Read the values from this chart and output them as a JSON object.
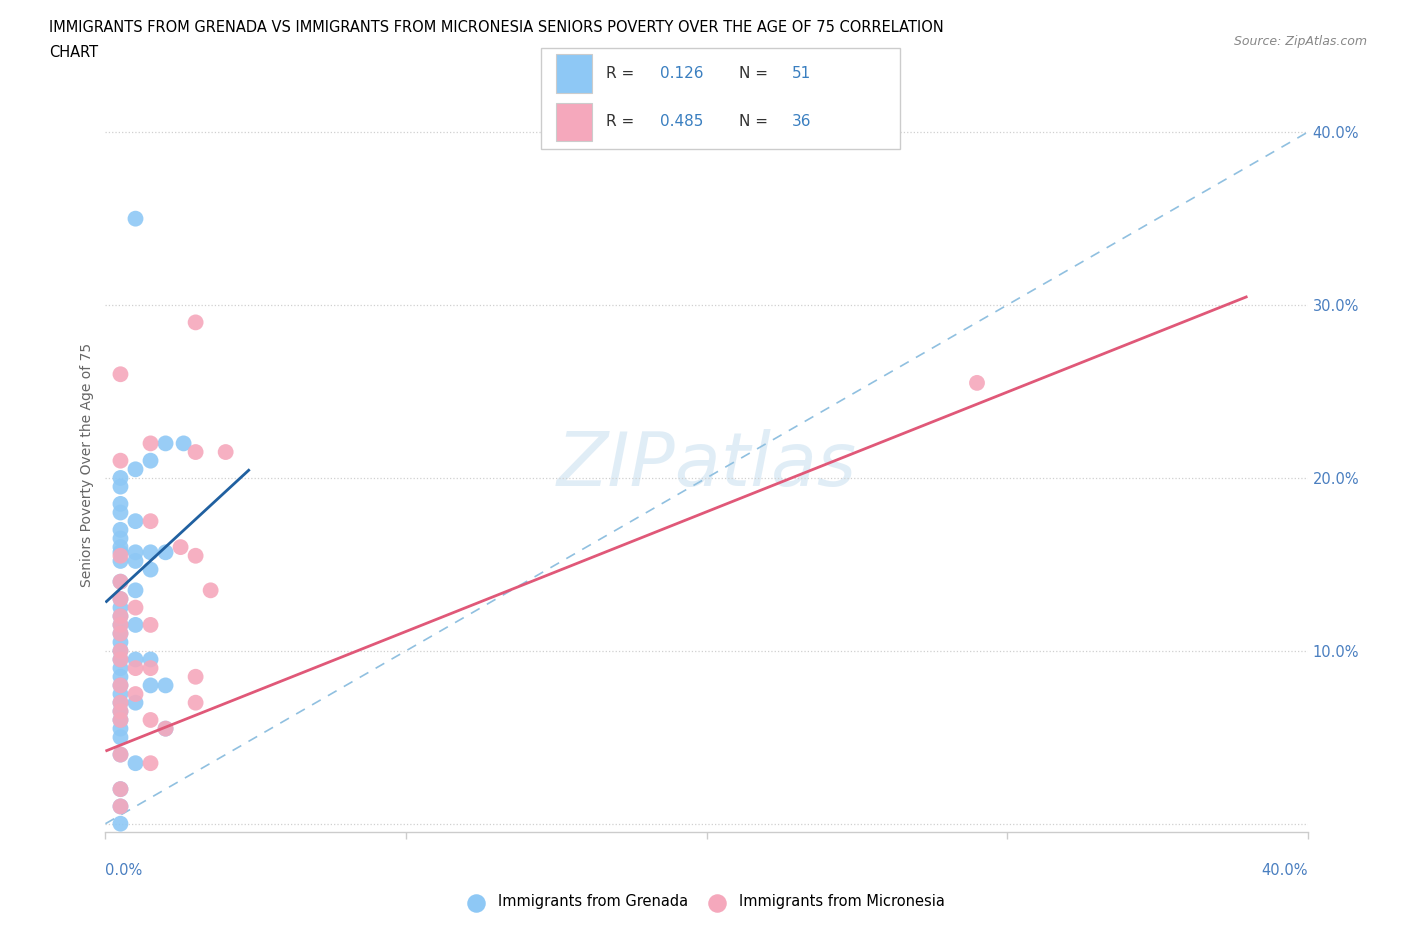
{
  "title_line1": "IMMIGRANTS FROM GRENADA VS IMMIGRANTS FROM MICRONESIA SENIORS POVERTY OVER THE AGE OF 75 CORRELATION",
  "title_line2": "CHART",
  "source": "Source: ZipAtlas.com",
  "ylabel": "Seniors Poverty Over the Age of 75",
  "legend_blue_label": "Immigrants from Grenada",
  "legend_pink_label": "Immigrants from Micronesia",
  "R_blue": "0.126",
  "N_blue": "51",
  "R_pink": "0.485",
  "N_pink": "36",
  "watermark": "ZIPatlas",
  "xmin": 0.0,
  "xmax": 0.4,
  "ymin": -0.005,
  "ymax": 0.42,
  "yticks": [
    0.0,
    0.1,
    0.2,
    0.3,
    0.4
  ],
  "ytick_labels": [
    "",
    "10.0%",
    "20.0%",
    "30.0%",
    "40.0%"
  ],
  "blue_color": "#8ec8f5",
  "pink_color": "#f5a8bc",
  "blue_line_color": "#2060a0",
  "pink_line_color": "#e05878",
  "dashed_line_color": "#90c0e0",
  "blue_scatter_x": [
    0.01,
    0.015,
    0.02,
    0.026,
    0.01,
    0.005,
    0.005,
    0.005,
    0.005,
    0.01,
    0.005,
    0.005,
    0.005,
    0.005,
    0.005,
    0.01,
    0.01,
    0.015,
    0.02,
    0.015,
    0.005,
    0.01,
    0.005,
    0.005,
    0.005,
    0.005,
    0.01,
    0.005,
    0.005,
    0.005,
    0.005,
    0.01,
    0.015,
    0.005,
    0.005,
    0.005,
    0.015,
    0.02,
    0.005,
    0.005,
    0.01,
    0.005,
    0.005,
    0.005,
    0.02,
    0.005,
    0.005,
    0.01,
    0.005,
    0.005,
    0.005
  ],
  "blue_scatter_y": [
    0.35,
    0.21,
    0.22,
    0.22,
    0.205,
    0.2,
    0.195,
    0.185,
    0.18,
    0.175,
    0.17,
    0.165,
    0.16,
    0.157,
    0.152,
    0.157,
    0.152,
    0.157,
    0.157,
    0.147,
    0.14,
    0.135,
    0.13,
    0.125,
    0.12,
    0.115,
    0.115,
    0.11,
    0.105,
    0.1,
    0.095,
    0.095,
    0.095,
    0.09,
    0.085,
    0.08,
    0.08,
    0.08,
    0.075,
    0.07,
    0.07,
    0.065,
    0.06,
    0.055,
    0.055,
    0.05,
    0.04,
    0.035,
    0.02,
    0.01,
    0.0
  ],
  "pink_scatter_x": [
    0.03,
    0.005,
    0.015,
    0.03,
    0.04,
    0.005,
    0.015,
    0.025,
    0.005,
    0.03,
    0.005,
    0.035,
    0.005,
    0.01,
    0.005,
    0.015,
    0.005,
    0.005,
    0.005,
    0.005,
    0.01,
    0.015,
    0.03,
    0.005,
    0.01,
    0.005,
    0.03,
    0.005,
    0.005,
    0.015,
    0.02,
    0.005,
    0.015,
    0.005,
    0.005,
    0.29
  ],
  "pink_scatter_y": [
    0.29,
    0.26,
    0.22,
    0.215,
    0.215,
    0.21,
    0.175,
    0.16,
    0.155,
    0.155,
    0.14,
    0.135,
    0.13,
    0.125,
    0.12,
    0.115,
    0.115,
    0.11,
    0.1,
    0.095,
    0.09,
    0.09,
    0.085,
    0.08,
    0.075,
    0.07,
    0.07,
    0.065,
    0.06,
    0.06,
    0.055,
    0.04,
    0.035,
    0.02,
    0.01,
    0.255
  ],
  "blue_line_x": [
    0.0,
    0.048
  ],
  "blue_line_y": [
    0.128,
    0.205
  ],
  "pink_line_x": [
    0.0,
    0.38
  ],
  "pink_line_y": [
    0.042,
    0.305
  ],
  "dashed_line_x": [
    0.0,
    0.4
  ],
  "dashed_line_y": [
    0.0,
    0.4
  ],
  "xtick_positions": [
    0.0,
    0.1,
    0.2,
    0.3,
    0.4
  ]
}
